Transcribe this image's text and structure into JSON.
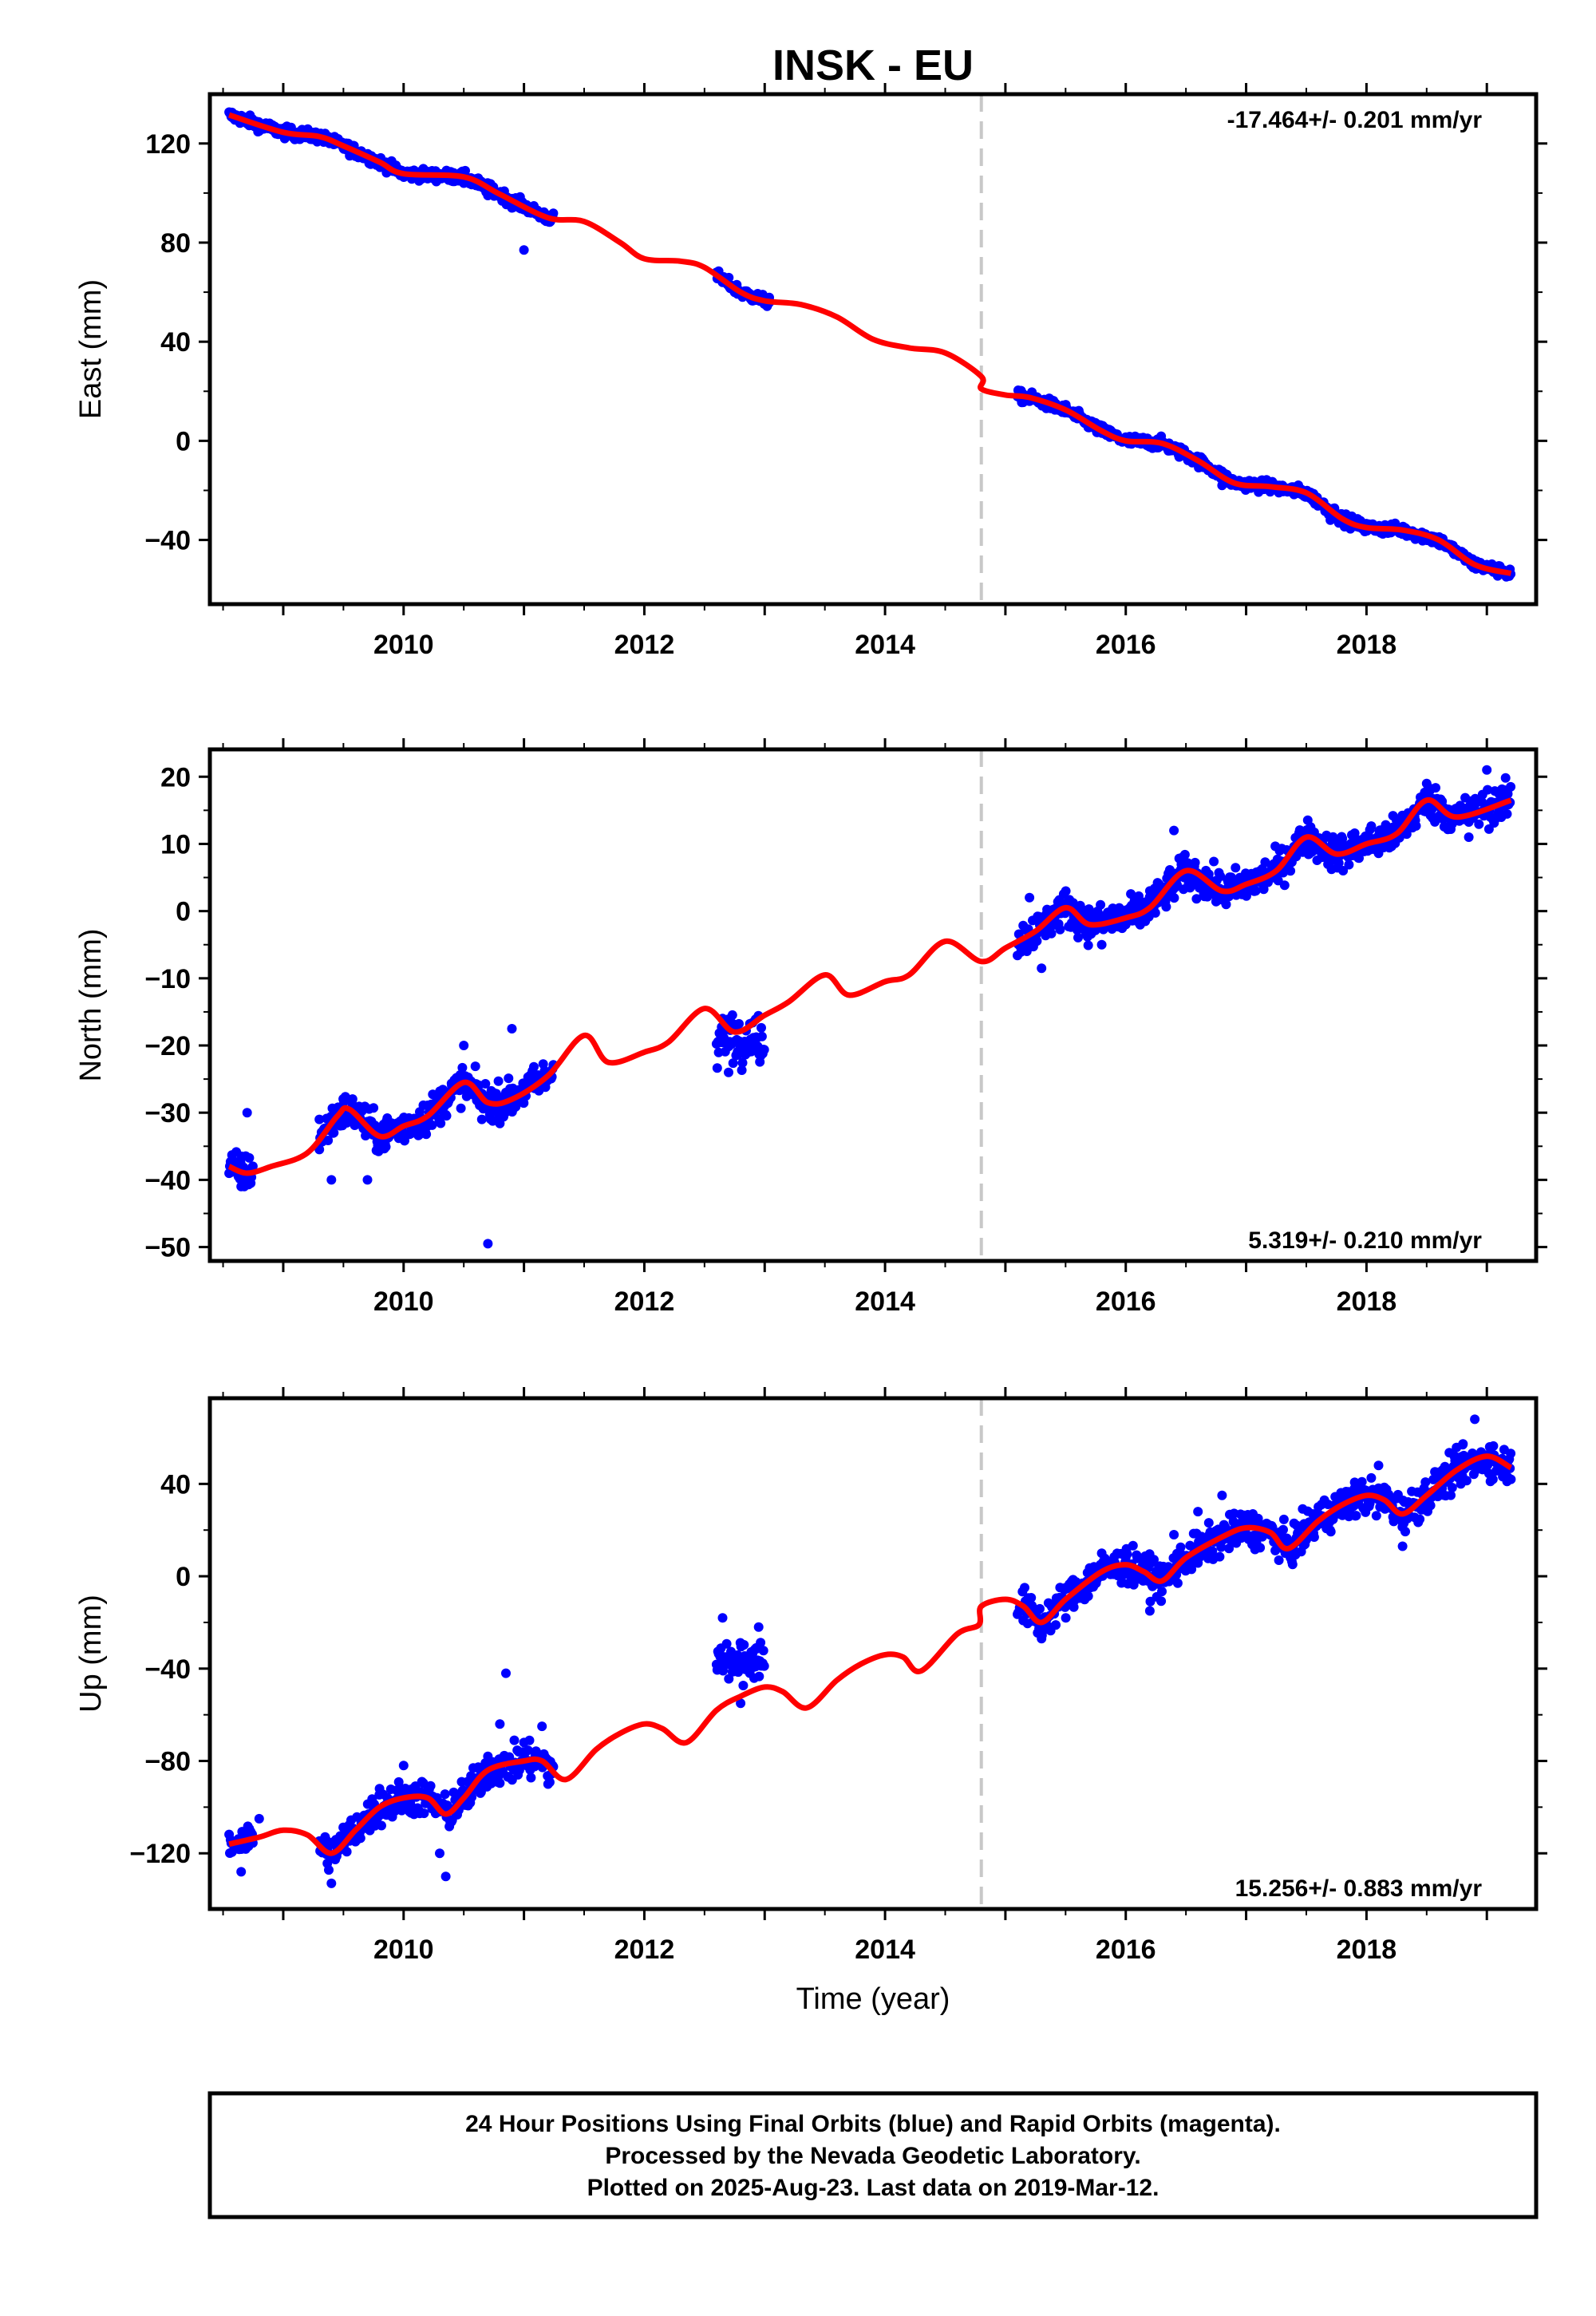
{
  "chart_data": [
    {
      "type": "scatter",
      "title": "INSK - EU",
      "xlabel": "",
      "ylabel": "East (mm)",
      "xlim": [
        2008.45,
        2019.35
      ],
      "ylim": [
        -63,
        137
      ],
      "yticks": [
        120,
        80,
        40,
        0,
        -40
      ],
      "xticks": [
        2010,
        2012,
        2014,
        2016,
        2018
      ],
      "grid": false,
      "rate_label": "-17.464+/- 0.201 mm/yr",
      "rate_position": "top-right",
      "break_x": 2014.8,
      "colors": {
        "points": "#0000ff",
        "fit": "#ff0000",
        "break": "#c8c8c8"
      },
      "series": [
        {
          "values": [
            [
              2008.55,
              131.5
            ],
            [
              2009.0,
              124.5
            ],
            [
              2009.3,
              122.8
            ],
            [
              2009.5,
              119.0
            ],
            [
              2009.8,
              112.5
            ],
            [
              2010.0,
              107.8
            ],
            [
              2010.5,
              106.5
            ],
            [
              2010.8,
              99.5
            ],
            [
              2011.2,
              90.0
            ],
            [
              2011.5,
              88.5
            ],
            [
              2011.8,
              80.0
            ],
            [
              2012.0,
              73.5
            ],
            [
              2012.3,
              72.5
            ],
            [
              2012.5,
              70.0
            ],
            [
              2012.8,
              60.0
            ],
            [
              2013.0,
              56.5
            ],
            [
              2013.3,
              55.0
            ],
            [
              2013.6,
              50.0
            ],
            [
              2013.9,
              41.0
            ],
            [
              2014.2,
              37.5
            ],
            [
              2014.5,
              35.5
            ],
            [
              2014.8,
              26.0
            ],
            [
              2014.8,
              21.0
            ],
            [
              2015.0,
              18.5
            ],
            [
              2015.2,
              17.5
            ],
            [
              2015.5,
              12.5
            ],
            [
              2015.8,
              4.0
            ],
            [
              2016.0,
              0.0
            ],
            [
              2016.3,
              -1.0
            ],
            [
              2016.6,
              -8.0
            ],
            [
              2016.9,
              -17.0
            ],
            [
              2017.2,
              -18.5
            ],
            [
              2017.5,
              -21.0
            ],
            [
              2017.8,
              -31.5
            ],
            [
              2018.0,
              -35.0
            ],
            [
              2018.3,
              -36.0
            ],
            [
              2018.6,
              -40.0
            ],
            [
              2018.9,
              -50.0
            ],
            [
              2019.2,
              -53.5
            ]
          ]
        },
        {
          "values": [
            [
              2008.6,
              131
            ],
            [
              2008.7,
              128
            ],
            [
              2008.8,
              125
            ],
            [
              2009.3,
              123
            ],
            [
              2009.5,
              118
            ],
            [
              2009.7,
              114
            ],
            [
              2009.9,
              110
            ],
            [
              2010.2,
              108
            ],
            [
              2010.5,
              104
            ],
            [
              2010.7,
              99
            ],
            [
              2010.9,
              94
            ],
            [
              2011.0,
              77
            ],
            [
              2011.2,
              91
            ],
            [
              2012.65,
              64
            ],
            [
              2012.8,
              60
            ],
            [
              2013.0,
              57
            ],
            [
              2015.2,
              16
            ],
            [
              2015.4,
              14
            ],
            [
              2015.7,
              6
            ],
            [
              2016.0,
              0
            ],
            [
              2016.3,
              -2
            ],
            [
              2016.6,
              -8
            ],
            [
              2016.8,
              -18
            ],
            [
              2017.1,
              -19
            ],
            [
              2017.4,
              -21
            ],
            [
              2017.7,
              -32
            ],
            [
              2018.0,
              -36
            ],
            [
              2018.3,
              -36
            ],
            [
              2018.6,
              -42
            ],
            [
              2018.9,
              -51
            ],
            [
              2019.15,
              -53
            ]
          ]
        }
      ]
    },
    {
      "type": "scatter",
      "title": "",
      "xlabel": "",
      "ylabel": "North (mm)",
      "xlim": [
        2008.45,
        2019.35
      ],
      "ylim": [
        -51,
        23
      ],
      "yticks": [
        20,
        10,
        0,
        -10,
        -20,
        -30,
        -40,
        -50
      ],
      "xticks": [
        2010,
        2012,
        2014,
        2016,
        2018
      ],
      "grid": false,
      "rate_label": "5.319+/- 0.210 mm/yr",
      "rate_position": "bottom-right",
      "break_x": 2014.8,
      "colors": {
        "points": "#0000ff",
        "fit": "#ff0000",
        "break": "#c8c8c8"
      },
      "series": [
        {
          "values": [
            [
              2008.55,
              -38.0
            ],
            [
              2008.7,
              -39.0
            ],
            [
              2008.9,
              -38.0
            ],
            [
              2009.2,
              -36.0
            ],
            [
              2009.45,
              -30.5
            ],
            [
              2009.55,
              -29.5
            ],
            [
              2009.8,
              -33.5
            ],
            [
              2010.0,
              -32.0
            ],
            [
              2010.2,
              -30.5
            ],
            [
              2010.5,
              -25.5
            ],
            [
              2010.7,
              -28.5
            ],
            [
              2010.9,
              -28.0
            ],
            [
              2011.2,
              -24.5
            ],
            [
              2011.5,
              -18.5
            ],
            [
              2011.7,
              -22.5
            ],
            [
              2012.0,
              -21.0
            ],
            [
              2012.2,
              -19.5
            ],
            [
              2012.5,
              -14.5
            ],
            [
              2012.75,
              -18.0
            ],
            [
              2013.0,
              -15.5
            ],
            [
              2013.2,
              -13.5
            ],
            [
              2013.5,
              -9.5
            ],
            [
              2013.7,
              -12.5
            ],
            [
              2014.0,
              -10.5
            ],
            [
              2014.2,
              -9.5
            ],
            [
              2014.5,
              -4.5
            ],
            [
              2014.8,
              -7.5
            ],
            [
              2015.0,
              -5.5
            ],
            [
              2015.25,
              -3.0
            ],
            [
              2015.5,
              0.5
            ],
            [
              2015.7,
              -2.0
            ],
            [
              2016.0,
              -1.0
            ],
            [
              2016.2,
              0.5
            ],
            [
              2016.5,
              6.0
            ],
            [
              2016.8,
              3.0
            ],
            [
              2017.0,
              4.0
            ],
            [
              2017.25,
              6.0
            ],
            [
              2017.5,
              11.0
            ],
            [
              2017.75,
              8.5
            ],
            [
              2018.0,
              10.0
            ],
            [
              2018.25,
              11.5
            ],
            [
              2018.5,
              16.5
            ],
            [
              2018.75,
              14.0
            ],
            [
              2019.2,
              16.5
            ]
          ]
        },
        {
          "values": [
            [
              2008.6,
              -38
            ],
            [
              2008.65,
              -41
            ],
            [
              2008.7,
              -30
            ],
            [
              2009.3,
              -31
            ],
            [
              2009.4,
              -40
            ],
            [
              2009.5,
              -28
            ],
            [
              2009.7,
              -40
            ],
            [
              2009.9,
              -33
            ],
            [
              2010.2,
              -32
            ],
            [
              2010.4,
              -26
            ],
            [
              2010.5,
              -20
            ],
            [
              2010.65,
              -31
            ],
            [
              2010.7,
              -49.5
            ],
            [
              2010.85,
              -27
            ],
            [
              2010.9,
              -17.5
            ],
            [
              2011.1,
              -26
            ],
            [
              2012.65,
              -16
            ],
            [
              2012.7,
              -24
            ],
            [
              2012.9,
              -20
            ],
            [
              2015.2,
              2
            ],
            [
              2015.3,
              -8.5
            ],
            [
              2015.5,
              0
            ],
            [
              2015.8,
              -5
            ],
            [
              2016.0,
              -2
            ],
            [
              2016.2,
              3
            ],
            [
              2016.4,
              12
            ],
            [
              2016.6,
              5
            ],
            [
              2016.9,
              3
            ],
            [
              2017.2,
              5
            ],
            [
              2017.5,
              12
            ],
            [
              2017.8,
              9
            ],
            [
              2018.0,
              11
            ],
            [
              2018.3,
              12
            ],
            [
              2018.5,
              19
            ],
            [
              2018.7,
              15
            ],
            [
              2018.85,
              11
            ],
            [
              2019.0,
              21
            ],
            [
              2019.15,
              18
            ]
          ]
        }
      ]
    },
    {
      "type": "scatter",
      "title": "",
      "xlabel": "Time (year)",
      "ylabel": "Up (mm)",
      "xlim": [
        2008.45,
        2019.35
      ],
      "ylim": [
        -141,
        74
      ],
      "yticks": [
        40,
        0,
        -40,
        -80,
        -120
      ],
      "xticks": [
        2010,
        2012,
        2014,
        2016,
        2018
      ],
      "grid": false,
      "rate_label": "15.256+/- 0.883 mm/yr",
      "rate_position": "bottom-right",
      "break_x": 2014.8,
      "colors": {
        "points": "#0000ff",
        "fit": "#ff0000",
        "break": "#c8c8c8"
      },
      "series": [
        {
          "values": [
            [
              2008.55,
              -116
            ],
            [
              2008.8,
              -113
            ],
            [
              2009.0,
              -110
            ],
            [
              2009.2,
              -112
            ],
            [
              2009.4,
              -120
            ],
            [
              2009.6,
              -110
            ],
            [
              2009.8,
              -100
            ],
            [
              2010.0,
              -96
            ],
            [
              2010.2,
              -96
            ],
            [
              2010.35,
              -103
            ],
            [
              2010.5,
              -96
            ],
            [
              2010.7,
              -84
            ],
            [
              2011.0,
              -80
            ],
            [
              2011.15,
              -80
            ],
            [
              2011.35,
              -88
            ],
            [
              2011.6,
              -75
            ],
            [
              2011.8,
              -68
            ],
            [
              2012.0,
              -64
            ],
            [
              2012.15,
              -66
            ],
            [
              2012.35,
              -72
            ],
            [
              2012.6,
              -58
            ],
            [
              2012.8,
              -52
            ],
            [
              2013.0,
              -48
            ],
            [
              2013.15,
              -50
            ],
            [
              2013.35,
              -57
            ],
            [
              2013.6,
              -45
            ],
            [
              2013.8,
              -38
            ],
            [
              2014.0,
              -34
            ],
            [
              2014.15,
              -35
            ],
            [
              2014.3,
              -41
            ],
            [
              2014.6,
              -25
            ],
            [
              2014.78,
              -21
            ],
            [
              2014.8,
              -13
            ],
            [
              2015.0,
              -10
            ],
            [
              2015.15,
              -13
            ],
            [
              2015.3,
              -20
            ],
            [
              2015.5,
              -10
            ],
            [
              2015.8,
              2
            ],
            [
              2016.0,
              5
            ],
            [
              2016.15,
              2
            ],
            [
              2016.3,
              -2
            ],
            [
              2016.5,
              8
            ],
            [
              2016.8,
              17
            ],
            [
              2017.0,
              21
            ],
            [
              2017.2,
              19
            ],
            [
              2017.35,
              12
            ],
            [
              2017.6,
              24
            ],
            [
              2017.8,
              31
            ],
            [
              2018.0,
              35
            ],
            [
              2018.15,
              33
            ],
            [
              2018.3,
              27
            ],
            [
              2018.5,
              35
            ],
            [
              2018.75,
              46
            ],
            [
              2019.0,
              52
            ],
            [
              2019.2,
              47
            ]
          ]
        },
        {
          "values": [
            [
              2008.6,
              -116
            ],
            [
              2008.65,
              -128
            ],
            [
              2008.8,
              -105
            ],
            [
              2009.4,
              -133
            ],
            [
              2009.6,
              -110
            ],
            [
              2009.8,
              -92
            ],
            [
              2010.0,
              -82
            ],
            [
              2010.2,
              -97
            ],
            [
              2010.3,
              -120
            ],
            [
              2010.35,
              -130
            ],
            [
              2010.5,
              -95
            ],
            [
              2010.7,
              -78
            ],
            [
              2010.8,
              -64
            ],
            [
              2010.85,
              -42
            ],
            [
              2011.0,
              -72
            ],
            [
              2011.15,
              -65
            ],
            [
              2011.2,
              -90
            ],
            [
              2012.65,
              -18
            ],
            [
              2012.75,
              -40
            ],
            [
              2012.8,
              -55
            ],
            [
              2012.95,
              -22
            ],
            [
              2015.2,
              -15
            ],
            [
              2015.3,
              -27
            ],
            [
              2015.5,
              -5
            ],
            [
              2015.8,
              10
            ],
            [
              2016.0,
              8
            ],
            [
              2016.2,
              -15
            ],
            [
              2016.4,
              18
            ],
            [
              2016.6,
              28
            ],
            [
              2016.8,
              35
            ],
            [
              2017.1,
              25
            ],
            [
              2017.4,
              10
            ],
            [
              2017.6,
              30
            ],
            [
              2017.9,
              38
            ],
            [
              2018.1,
              48
            ],
            [
              2018.3,
              13
            ],
            [
              2018.5,
              30
            ],
            [
              2018.8,
              57
            ],
            [
              2018.9,
              68
            ],
            [
              2019.05,
              42
            ],
            [
              2019.2,
              42
            ]
          ]
        }
      ]
    }
  ],
  "footer": {
    "line1": "24 Hour Positions Using Final Orbits (blue) and Rapid Orbits (magenta).",
    "line2": "Processed by the Nevada Geodetic Laboratory.",
    "line3": "Plotted on 2025-Aug-23. Last data on 2019-Mar-12."
  }
}
